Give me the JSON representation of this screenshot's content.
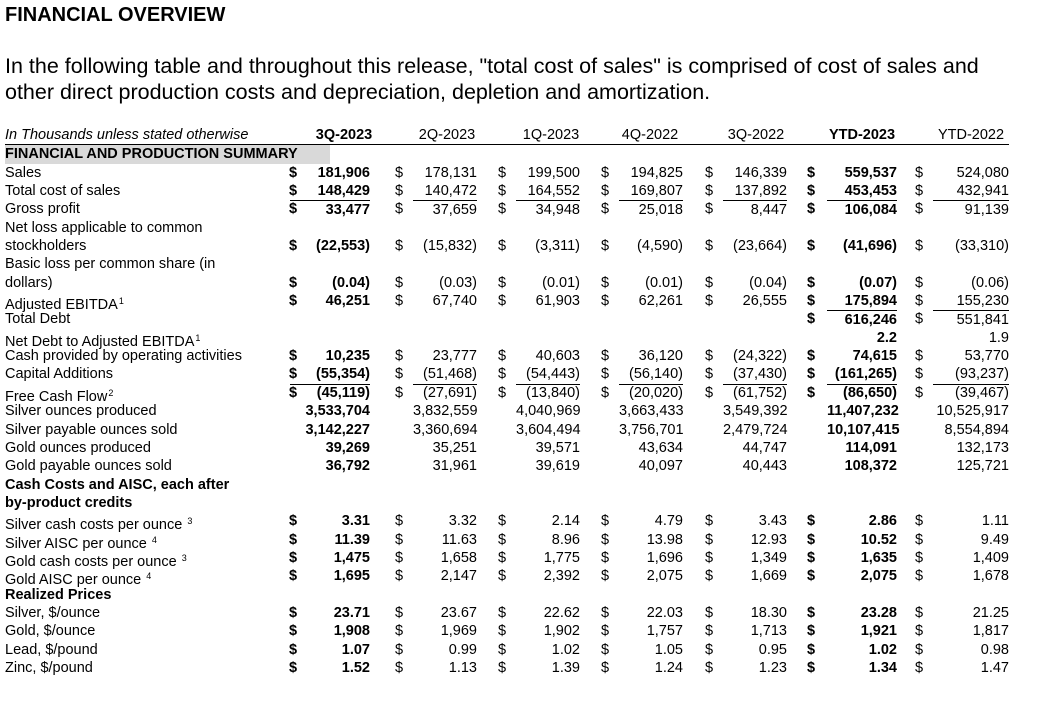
{
  "title": "FINANCIAL OVERVIEW",
  "intro": {
    "line1": "In the following table and throughout this release, \"total cost of sales\" is comprised of cost of sales and",
    "line2": "other direct production costs and depreciation, depletion and amortization."
  },
  "table": {
    "unit_note": "In Thousands unless stated otherwise",
    "columns": [
      "3Q-2023",
      "2Q-2023",
      "1Q-2023",
      "4Q-2022",
      "3Q-2022",
      "YTD-2023",
      "YTD-2022"
    ],
    "summary_heading": "FINANCIAL AND PRODUCTION SUMMARY",
    "rows": {
      "sales": {
        "label": "Sales",
        "values": [
          "181,906",
          "178,131",
          "199,500",
          "194,825",
          "146,339",
          "559,537",
          "524,080"
        ]
      },
      "total_cost": {
        "label": "Total cost of sales",
        "values": [
          "148,429",
          "140,472",
          "164,552",
          "169,807",
          "137,892",
          "453,453",
          "432,941"
        ]
      },
      "gross_profit": {
        "label": "Gross profit",
        "values": [
          "33,477",
          "37,659",
          "34,948",
          "25,018",
          "8,447",
          "106,084",
          "91,139"
        ]
      },
      "net_loss": {
        "label1": "Net loss applicable to common",
        "label2": "stockholders",
        "values": [
          "(22,553)",
          "(15,832)",
          "(3,311)",
          "(4,590)",
          "(23,664)",
          "(41,696)",
          "(33,310)"
        ]
      },
      "basic_loss": {
        "label1": "Basic loss per common share (in",
        "label2": "dollars)",
        "values": [
          "(0.04)",
          "(0.03)",
          "(0.01)",
          "(0.01)",
          "(0.04)",
          "(0.07)",
          "(0.06)"
        ]
      },
      "adj_ebitda": {
        "label": "Adjusted EBITDA",
        "sup": "1",
        "values": [
          "46,251",
          "67,740",
          "61,903",
          "62,261",
          "26,555",
          "175,894",
          "155,230"
        ]
      },
      "total_debt": {
        "label": "Total Debt",
        "values": [
          "616,246",
          "551,841"
        ]
      },
      "net_debt": {
        "label": "Net Debt to Adjusted EBITDA",
        "sup": "1",
        "values": [
          "2.2",
          "1.9"
        ]
      },
      "op_cash": {
        "label": "Cash provided by operating activities",
        "values": [
          "10,235",
          "23,777",
          "40,603",
          "36,120",
          "(24,322)",
          "74,615",
          "53,770"
        ]
      },
      "capex": {
        "label": "Capital Additions",
        "values": [
          "(55,354)",
          "(51,468)",
          "(54,443)",
          "(56,140)",
          "(37,430)",
          "(161,265)",
          "(93,237)"
        ]
      },
      "fcf": {
        "label": "Free Cash Flow",
        "sup": "2",
        "values": [
          "(45,119)",
          "(27,691)",
          "(13,840)",
          "(20,020)",
          "(61,752)",
          "(86,650)",
          "(39,467)"
        ]
      },
      "ag_prod": {
        "label": "Silver ounces produced",
        "values": [
          "3,533,704",
          "3,832,559",
          "4,040,969",
          "3,663,433",
          "3,549,392",
          "11,407,232",
          "10,525,917"
        ]
      },
      "ag_sold": {
        "label": "Silver payable ounces sold",
        "values": [
          "3,142,227",
          "3,360,694",
          "3,604,494",
          "3,756,701",
          "2,479,724",
          "10,107,415",
          "8,554,894"
        ]
      },
      "au_prod": {
        "label": "Gold ounces produced",
        "values": [
          "39,269",
          "35,251",
          "39,571",
          "43,634",
          "44,747",
          "114,091",
          "132,173"
        ]
      },
      "au_sold": {
        "label": "Gold payable ounces sold",
        "values": [
          "36,792",
          "31,961",
          "39,619",
          "40,097",
          "40,443",
          "108,372",
          "125,721"
        ]
      }
    },
    "cash_costs_heading1": "Cash Costs and AISC, each after",
    "cash_costs_heading2": "by-product credits",
    "cost_rows": {
      "ag_cash": {
        "label": "Silver cash costs per ounce",
        "sup": "3",
        "values": [
          "3.31",
          "3.32",
          "2.14",
          "4.79",
          "3.43",
          "2.86",
          "1.11"
        ]
      },
      "ag_aisc": {
        "label": "Silver AISC per ounce",
        "sup": "4",
        "values": [
          "11.39",
          "11.63",
          "8.96",
          "13.98",
          "12.93",
          "10.52",
          "9.49"
        ]
      },
      "au_cash": {
        "label": "Gold cash costs per ounce",
        "sup": "3",
        "values": [
          "1,475",
          "1,658",
          "1,775",
          "1,696",
          "1,349",
          "1,635",
          "1,409"
        ]
      },
      "au_aisc": {
        "label": "Gold AISC per ounce",
        "sup": "4",
        "values": [
          "1,695",
          "2,147",
          "2,392",
          "2,075",
          "1,669",
          "2,075",
          "1,678"
        ]
      }
    },
    "prices_heading": "Realized Prices",
    "price_rows": {
      "silver": {
        "label": "Silver, $/ounce",
        "values": [
          "23.71",
          "23.67",
          "22.62",
          "22.03",
          "18.30",
          "23.28",
          "21.25"
        ]
      },
      "gold": {
        "label": "Gold, $/ounce",
        "values": [
          "1,908",
          "1,969",
          "1,902",
          "1,757",
          "1,713",
          "1,921",
          "1,817"
        ]
      },
      "lead": {
        "label": "Lead, $/pound",
        "values": [
          "1.07",
          "0.99",
          "1.02",
          "1.05",
          "0.95",
          "1.02",
          "0.98"
        ]
      },
      "zinc": {
        "label": "Zinc, $/pound",
        "values": [
          "1.52",
          "1.13",
          "1.39",
          "1.24",
          "1.23",
          "1.34",
          "1.47"
        ]
      }
    },
    "currency_symbol": "$"
  }
}
